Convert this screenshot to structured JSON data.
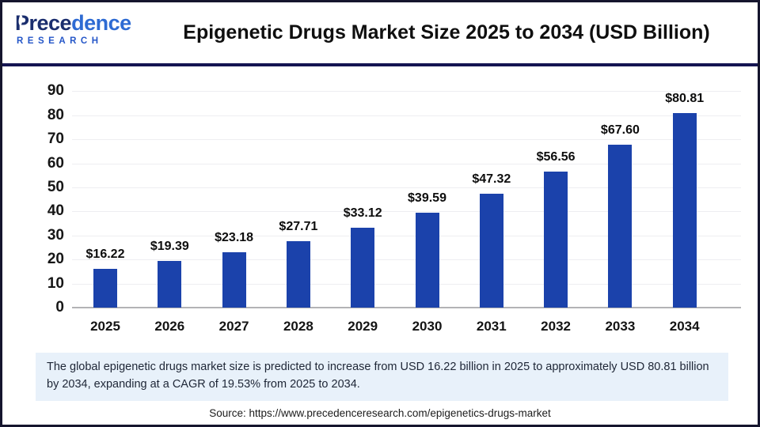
{
  "header": {
    "title": "Epigenetic Drugs Market Size 2025 to 2034 (USD Billion)"
  },
  "logo": {
    "name_part1": "Prece",
    "name_part2": "dence",
    "subtitle": "RESEARCH"
  },
  "note": {
    "text": "The global epigenetic drugs market size is predicted to increase from USD 16.22 billion in 2025 to approximately USD 80.81 billion by 2034, expanding at a CAGR of 19.53% from 2025 to 2034."
  },
  "source": {
    "text": "Source: https://www.precedenceresearch.com/epigenetics-drugs-market"
  },
  "colors": {
    "bar": "#1b42ab",
    "header_divider_navy": "#151552",
    "note_background": "#e8f1fa",
    "logo_navy": "#1b2e6e",
    "logo_blue": "#2e6bd3",
    "baseline_gray": "#b3b3b6"
  },
  "chart_data": {
    "type": "bar",
    "title": "Epigenetic Drugs Market Size 2025 to 2034 (USD Billion)",
    "categories": [
      "2025",
      "2026",
      "2027",
      "2028",
      "2029",
      "2030",
      "2031",
      "2032",
      "2033",
      "2034"
    ],
    "values": [
      16.22,
      19.39,
      23.18,
      27.71,
      33.12,
      39.59,
      47.32,
      56.56,
      67.6,
      80.81
    ],
    "value_labels": [
      "$16.22",
      "$19.39",
      "$23.18",
      "$27.71",
      "$33.12",
      "$39.59",
      "$47.32",
      "$56.56",
      "$67.60",
      "$80.81"
    ],
    "xlabel": "",
    "ylabel": "",
    "ylim": [
      0,
      90
    ],
    "yticks": [
      0,
      10,
      20,
      30,
      40,
      50,
      60,
      70,
      80,
      90
    ],
    "grid": true,
    "legend": false,
    "bar_color": "#1b42ab"
  }
}
